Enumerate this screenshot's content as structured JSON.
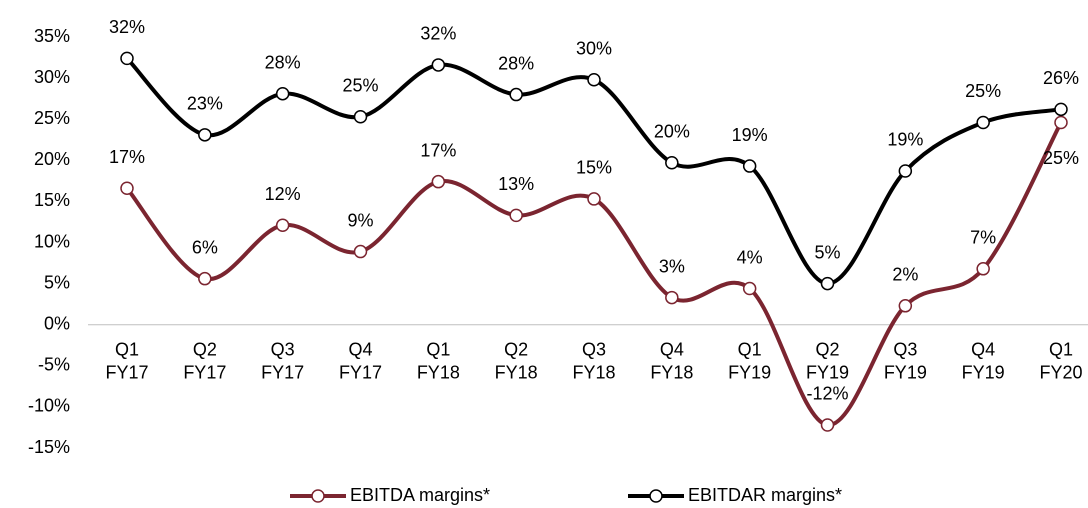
{
  "chart_data": {
    "type": "line",
    "categories": [
      "Q1 FY17",
      "Q2 FY17",
      "Q3 FY17",
      "Q4 FY17",
      "Q1 FY18",
      "Q2 FY18",
      "Q3 FY18",
      "Q4 FY18",
      "Q1 FY19",
      "Q2 FY19",
      "Q3 FY19",
      "Q4 FY19",
      "Q1 FY20"
    ],
    "series": [
      {
        "name": "EBITDA margins*",
        "color": "#7b2530",
        "values": [
          16.6,
          5.6,
          12.1,
          8.9,
          17.4,
          13.3,
          15.3,
          3.3,
          4.4,
          -12.2,
          2.3,
          6.8,
          24.6
        ],
        "value_labels": [
          "17%",
          "6%",
          "12%",
          "9%",
          "17%",
          "13%",
          "15%",
          "3%",
          "4%",
          "-12%",
          "2%",
          "7%",
          "25%"
        ]
      },
      {
        "name": "EBITDAR margins*",
        "color": "#000000",
        "values": [
          32.4,
          23.1,
          28.1,
          25.3,
          31.6,
          28.0,
          29.8,
          19.7,
          19.3,
          5.0,
          18.7,
          24.6,
          26.2
        ],
        "value_labels": [
          "32%",
          "23%",
          "28%",
          "25%",
          "32%",
          "28%",
          "30%",
          "20%",
          "19%",
          "5%",
          "19%",
          "25%",
          "26%"
        ]
      }
    ],
    "ylim": [
      -15,
      35
    ],
    "yticks": [
      {
        "value": -15,
        "label": "-15%"
      },
      {
        "value": -10,
        "label": "-10%"
      },
      {
        "value": -5,
        "label": "-5%"
      },
      {
        "value": 0,
        "label": "0%"
      },
      {
        "value": 5,
        "label": "5%"
      },
      {
        "value": 10,
        "label": "10%"
      },
      {
        "value": 15,
        "label": "15%"
      },
      {
        "value": 20,
        "label": "20%"
      },
      {
        "value": 25,
        "label": "25%"
      },
      {
        "value": 30,
        "label": "30%"
      },
      {
        "value": 35,
        "label": "35%"
      }
    ],
    "grid": false,
    "legend": "bottom"
  }
}
